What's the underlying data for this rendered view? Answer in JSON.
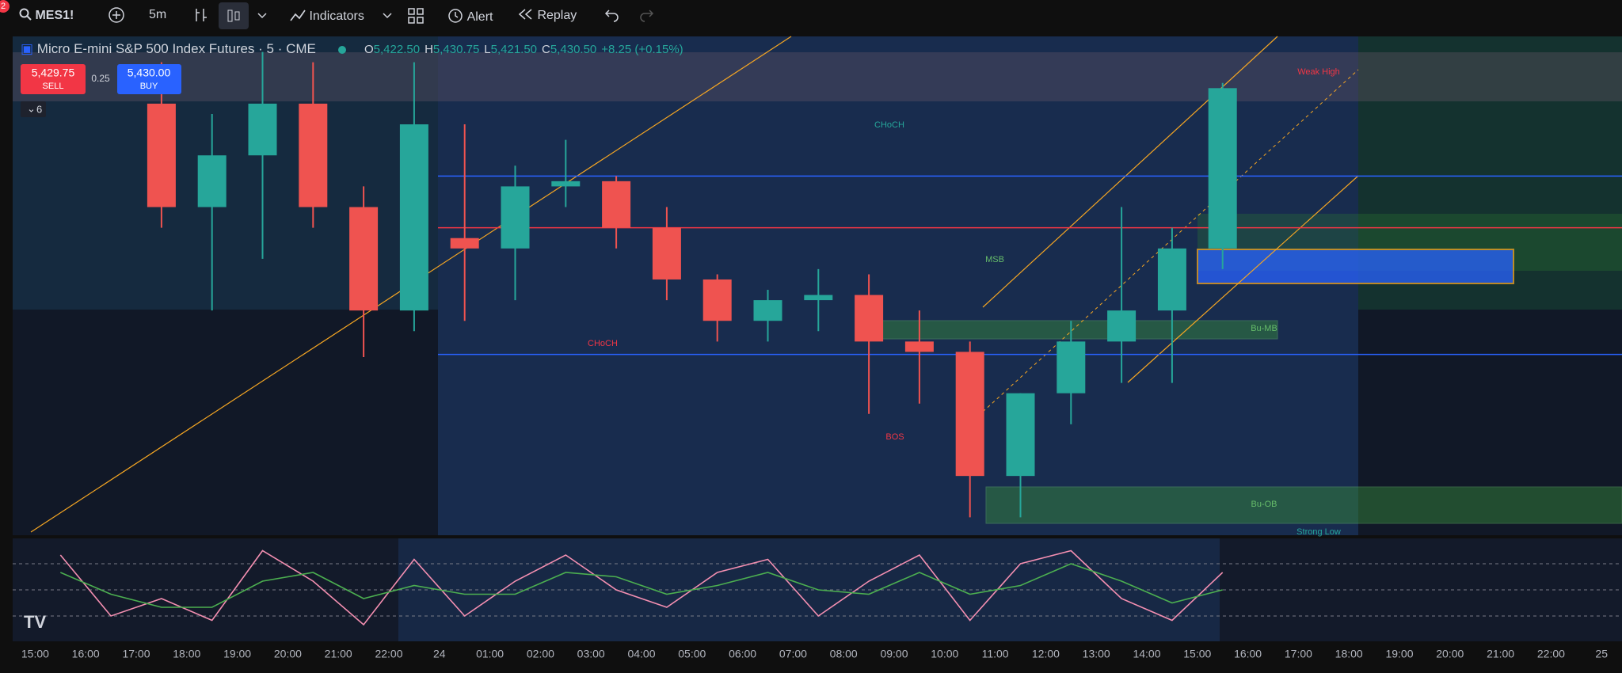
{
  "toolbar": {
    "badge": "2",
    "symbol": "MES1!",
    "interval": "5m",
    "indicators": "Indicators",
    "alert": "Alert",
    "replay": "Replay"
  },
  "legend": {
    "name": "Micro E-mini S&P 500 Index Futures · 5 · CME",
    "open_label": "O",
    "open": "5,422.50",
    "high_label": "H",
    "high": "5,430.75",
    "low_label": "L",
    "low": "5,421.50",
    "close_label": "C",
    "close": "5,430.50",
    "change": "+8.25 (+0.15%)",
    "sell_price": "5,429.75",
    "sell": "SELL",
    "spread": "0.25",
    "buy_price": "5,430.00",
    "buy": "BUY",
    "indicator_count": "6"
  },
  "chart_data": {
    "type": "candlestick",
    "categories": [
      "15:00",
      "16:00",
      "17:00",
      "18:00",
      "19:00",
      "20:00",
      "21:00",
      "22:00",
      "24",
      "01:00",
      "02:00",
      "03:00",
      "04:00",
      "05:00",
      "06:00",
      "07:00",
      "08:00",
      "09:00",
      "10:00",
      "11:00",
      "12:00",
      "13:00",
      "14:00",
      "15:00",
      "16:00",
      "17:00",
      "18:00",
      "19:00",
      "20:00",
      "21:00",
      "22:00",
      "25"
    ],
    "open": [
      null,
      null,
      5428.75,
      5418.75,
      5423.75,
      5428.75,
      5418.75,
      5408.75,
      5415.75,
      5414.75,
      5420.75,
      5421.25,
      5416.75,
      5411.75,
      5407.75,
      5409.75,
      5410.25,
      5405.75,
      5404.75,
      5392.75,
      5400.75,
      5405.75,
      5408.75,
      5414.75,
      null,
      null,
      null,
      null,
      null,
      null,
      null,
      null
    ],
    "high": [
      null,
      null,
      5432.75,
      5427.75,
      5433.75,
      5432.75,
      5420.75,
      5432.75,
      5426.75,
      5422.75,
      5425.25,
      5421.75,
      5418.75,
      5412.25,
      5410.75,
      5412.75,
      5412.25,
      5408.75,
      5405.75,
      5400.75,
      5407.75,
      5418.75,
      5416.75,
      5430.75,
      null,
      null,
      null,
      null,
      null,
      null,
      null,
      null
    ],
    "low": [
      null,
      null,
      5416.75,
      5408.75,
      5413.75,
      5416.75,
      5404.25,
      5406.75,
      5407.75,
      5409.75,
      5418.75,
      5414.75,
      5409.75,
      5405.75,
      5405.75,
      5406.75,
      5398.75,
      5399.75,
      5388.75,
      5388.75,
      5397.75,
      5401.75,
      5401.75,
      5412.75,
      null,
      null,
      null,
      null,
      null,
      null,
      null,
      null
    ],
    "close": [
      null,
      null,
      5418.75,
      5423.75,
      5428.75,
      5418.75,
      5408.75,
      5426.75,
      5414.75,
      5420.75,
      5421.25,
      5416.75,
      5411.75,
      5407.75,
      5409.75,
      5410.25,
      5405.75,
      5404.75,
      5392.75,
      5400.75,
      5405.75,
      5408.75,
      5414.75,
      5430.25,
      null,
      null,
      null,
      null,
      null,
      null,
      null,
      null
    ],
    "up_color": "#26a69a",
    "down_color": "#ef5350",
    "ylim": [
      5387.25,
      5435.25
    ],
    "levels": [
      {
        "value": 5421.75,
        "color": "#2962ff"
      },
      {
        "value": 5416.75,
        "color": "#f23645"
      },
      {
        "value": 5404.5,
        "color": "#2962ff"
      }
    ],
    "annotations": [
      "CHoCH",
      "MSB",
      "CHoCH",
      "BOS",
      "Bu-MB",
      "Bu-OB",
      "Strong Low",
      "Weak High"
    ],
    "oscillator": {
      "ylim": [
        0,
        100
      ],
      "levels": [
        80,
        50,
        20
      ],
      "series": [
        {
          "color": "#f48fb1",
          "values": [
            90,
            20,
            40,
            15,
            95,
            60,
            10,
            85,
            20,
            60,
            90,
            50,
            30,
            70,
            85,
            20,
            60,
            90,
            15,
            80,
            95,
            40,
            15,
            70,
            null,
            null,
            null,
            null,
            null,
            null,
            null,
            null
          ]
        },
        {
          "color": "#4caf50",
          "values": [
            70,
            45,
            30,
            30,
            60,
            70,
            40,
            55,
            45,
            45,
            70,
            65,
            45,
            55,
            70,
            50,
            45,
            70,
            45,
            55,
            80,
            60,
            35,
            50,
            null,
            null,
            null,
            null,
            null,
            null,
            null,
            null
          ]
        }
      ]
    }
  }
}
